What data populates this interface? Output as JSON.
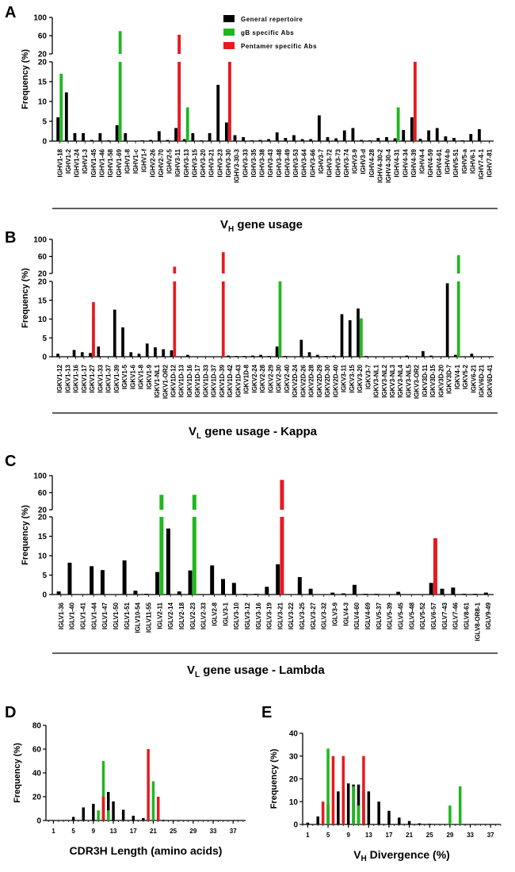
{
  "colors": {
    "general": "#000000",
    "gb": "#1fb81f",
    "pentamer": "#e8191f"
  },
  "legend": [
    {
      "key": "general",
      "label": "General repertoire"
    },
    {
      "key": "gb",
      "label": "gB specific Abs"
    },
    {
      "key": "pentamer",
      "label": "Pentamer specific Abs"
    }
  ],
  "chart_data": [
    {
      "id": "A",
      "type": "bar",
      "ylabel": "Frequency (%)",
      "title_main": "V",
      "title_sub": "H",
      "title_rest": " gene usage",
      "yticks_lower": [
        0,
        5,
        10,
        15,
        20
      ],
      "yticks_upper": [
        20,
        60,
        100
      ],
      "categories": [
        "IGHV1-18",
        "IGHV1-2",
        "IGHV1-24",
        "IGHV1-3",
        "IGHV1-45",
        "IGHV1-46",
        "IGHV1-58",
        "IGHV1-69",
        "IGHV1-8",
        "IGHV1-c",
        "IGHV1-f",
        "IGHV2-26",
        "IGHV2-70",
        "IGHV2-5",
        "IGHV3-11",
        "IGHV3-13",
        "IGHV3-15",
        "IGHV3-20",
        "IGHV3-21",
        "IGHV3-23",
        "IGHV3-30",
        "IGHV3-30-3",
        "IGHV3-33",
        "IGHV3-35",
        "IGHV3-38",
        "IGHV3-43",
        "IGHV3-48",
        "IGHV3-49",
        "IGHV3-53",
        "IGHV3-64",
        "IGHV3-66",
        "IGHV3-7",
        "IGHV3-72",
        "IGHV3-73",
        "IGHV3-74",
        "IGHV3-9",
        "IGHV3-d",
        "IGHV4-28",
        "IGHV4-30-2",
        "IGHV4-30-4",
        "IGHV4-31",
        "IGHV4-34",
        "IGHV4-39",
        "IGHV4-4",
        "IGHV4-59",
        "IGHV4-61",
        "IGHV4-b",
        "IGHV5-51",
        "IGHV5-a",
        "IGHV6-1",
        "IGHV7-4-1",
        "IGHV7-81"
      ],
      "series": [
        {
          "name": "General repertoire",
          "key": "general",
          "values": [
            6.0,
            12.3,
            2.0,
            2.0,
            0.3,
            2.0,
            0.2,
            4.0,
            2.0,
            0,
            0.2,
            0.3,
            2.5,
            0.3,
            3.3,
            0.5,
            2.0,
            0.2,
            2.0,
            14.2,
            4.7,
            1.5,
            1.0,
            0.2,
            0.3,
            0.5,
            2.2,
            0.8,
            1.5,
            0.5,
            0.5,
            6.5,
            1.0,
            0.7,
            2.7,
            3.3,
            0.3,
            0.2,
            0.8,
            1.0,
            0.7,
            2.8,
            6.0,
            0.6,
            2.7,
            3.3,
            1.2,
            0.8,
            0.2,
            1.8,
            3.0,
            0
          ]
        },
        {
          "name": "gB specific Abs",
          "key": "gb",
          "values": [
            17,
            0,
            0,
            0,
            0,
            0,
            0,
            70,
            0,
            0,
            0,
            0,
            0,
            0,
            0,
            8.5,
            0,
            0,
            0,
            0,
            0,
            0,
            0,
            0,
            0,
            0,
            0,
            0,
            0,
            0,
            0,
            0,
            0,
            0,
            0,
            0,
            0,
            0,
            0,
            0,
            8.5,
            0,
            0,
            0,
            0,
            0,
            0,
            0,
            0,
            0,
            0,
            0
          ]
        },
        {
          "name": "Pentamer specific Abs",
          "key": "pentamer",
          "values": [
            0,
            0,
            0,
            0,
            0,
            0,
            0,
            0,
            0,
            0,
            0,
            0,
            0,
            0,
            62,
            0,
            0,
            0,
            0,
            0,
            20,
            0,
            0,
            0,
            0,
            0,
            0,
            0,
            0,
            0,
            0,
            0,
            0,
            0,
            0,
            0,
            0,
            0,
            0,
            0,
            0,
            0,
            20,
            0,
            0,
            0,
            0,
            0,
            0,
            0,
            0,
            0
          ]
        }
      ]
    },
    {
      "id": "B",
      "type": "bar",
      "ylabel": "Frequency (%)",
      "title_main": "V",
      "title_sub": "L",
      "title_rest": "  gene usage - Kappa",
      "yticks_lower": [
        0,
        5,
        10,
        15,
        20
      ],
      "yticks_upper": [
        20,
        60,
        100
      ],
      "categories": [
        "IGKV1-12",
        "IGKV1-13",
        "IGKV1-16",
        "IGKV1-17",
        "IGKV1-27",
        "IGKV1-33",
        "IGKV1-37",
        "IGKV1-39",
        "IGKV1-5",
        "IGKV1-6",
        "IGKV1-8",
        "IGKV1-9",
        "IGKV1-NL1",
        "IGKV1-OR2",
        "IGKV1D-12",
        "IGKV1D-13",
        "IGKV1D-16",
        "IGKV1D-17",
        "IGKV1D-33",
        "IGKV1D-37",
        "IGKV1D-39",
        "IGKV1D-42",
        "IGKV1D-43",
        "IGKV1D-8",
        "IGKV2-24",
        "IGKV2-28",
        "IGKV2-29",
        "IGKV2-30",
        "IGKV2-40",
        "IGKV2D-24",
        "IGKV2D-26",
        "IGKV2D-28",
        "IGKV2D-29",
        "IGKV2D-30",
        "IGKV2D-40",
        "IGKV3-11",
        "IGKV3-15",
        "IGKV3-20",
        "IGKV3-7",
        "IGKV3-NL1",
        "IGKV3-NL2",
        "IGKV3-NL3",
        "IGKV3-NL4",
        "IGKV3-NL5",
        "IGKV3-OR2",
        "IGKV3D-11",
        "IGKV3D-15",
        "IGKV3D-20",
        "IGKV3D-7",
        "IGKV4-1",
        "IGKV5-2",
        "IGKV6-21",
        "IGKV6D-21",
        "IGKV6D-41"
      ],
      "series": [
        {
          "name": "General repertoire",
          "key": "general",
          "values": [
            0.8,
            0,
            1.8,
            1.2,
            1.0,
            2.7,
            0,
            12.5,
            7.8,
            1.2,
            0.8,
            3.5,
            2.5,
            2.0,
            1.7,
            0,
            0.5,
            0,
            0,
            0,
            0,
            0.3,
            0.2,
            0.2,
            0.3,
            0.5,
            0.2,
            2.7,
            0.2,
            0,
            4.5,
            1.2,
            0.5,
            0.2,
            0.3,
            11.3,
            9.7,
            12.8,
            0.2,
            0,
            0,
            0,
            0,
            0.3,
            0,
            1.5,
            0.3,
            0,
            19.5,
            0.5,
            0,
            0.8,
            0,
            0
          ]
        },
        {
          "name": "gB specific Abs",
          "key": "gb",
          "values": [
            0,
            0,
            0,
            0,
            10.2,
            0,
            0,
            0,
            0,
            0,
            0,
            0,
            0,
            0,
            0,
            0,
            0,
            0,
            0,
            0,
            0,
            0,
            0,
            0,
            0,
            0,
            0,
            20,
            0,
            0,
            0,
            0,
            0,
            0,
            0,
            0,
            0,
            10.2,
            0,
            0,
            0,
            0,
            0,
            0,
            0,
            0,
            0,
            0,
            0,
            63,
            0,
            0,
            0,
            0
          ]
        },
        {
          "name": "Pentamer specific Abs",
          "key": "pentamer",
          "values": [
            0,
            0,
            0,
            0,
            14.5,
            0,
            0,
            0,
            0,
            0,
            0,
            0,
            0,
            0,
            36,
            0,
            0,
            0,
            0,
            0,
            70,
            0,
            0,
            0,
            0,
            0,
            0,
            0,
            0,
            0,
            0,
            0,
            0,
            0,
            0,
            0,
            0,
            0,
            0,
            0,
            0,
            0,
            0,
            0,
            0,
            0,
            0,
            0,
            0,
            0,
            0,
            0,
            0,
            0
          ]
        }
      ]
    },
    {
      "id": "C",
      "type": "bar",
      "ylabel": "Frequency (%)",
      "title_main": "V",
      "title_sub": "L",
      "title_rest": "  gene usage - Lambda",
      "yticks_lower": [
        0,
        5,
        10,
        15,
        20
      ],
      "yticks_upper": [
        20,
        60,
        100
      ],
      "categories": [
        "IGLV1-36",
        "IGLV1-40",
        "IGLV1-41",
        "IGLV1-44",
        "IGLV1-47",
        "IGLV1-50",
        "IGLV1-51",
        "IGLV10-54",
        "IGLV11-55",
        "IGLV2-11",
        "IGLV2-14",
        "IGLV2-18",
        "IGLV2-23",
        "IGLV2-33",
        "IGLV2-8",
        "IGLV3-1",
        "IGLV3-10",
        "IGLV3-12",
        "IGLV3-16",
        "IGLV3-19",
        "IGLV3-21",
        "IGLV3-22",
        "IGLV3-25",
        "IGLV3-27",
        "IGLV3-32",
        "IGLV3-9",
        "IGLV4-3",
        "IGLV4-60",
        "IGLV4-69",
        "IGLV5-37",
        "IGLV5-39",
        "IGLV5-45",
        "IGLV5-48",
        "IGLV5-52",
        "IGLV6-57",
        "IGLV7-43",
        "IGLV7-46",
        "IGLV8-61",
        "IGLV8-OR8-1",
        "IGLV9-49"
      ],
      "series": [
        {
          "name": "General repertoire",
          "key": "general",
          "values": [
            0.8,
            8.2,
            0,
            7.3,
            6.3,
            0,
            8.8,
            1.0,
            0.2,
            5.8,
            17.0,
            0.8,
            6.2,
            0,
            7.5,
            4.0,
            3.0,
            0.2,
            0.2,
            2.0,
            7.8,
            0,
            4.5,
            1.5,
            0,
            0.5,
            0.3,
            2.5,
            0.2,
            0.2,
            0,
            0.7,
            0,
            0,
            3.0,
            1.5,
            1.8,
            0.2,
            0.2,
            0.5
          ]
        },
        {
          "name": "gB specific Abs",
          "key": "gb",
          "values": [
            0,
            0,
            0,
            0,
            0,
            0,
            0,
            0,
            0,
            55,
            0,
            0,
            55,
            0,
            0,
            0,
            0,
            0,
            0,
            0,
            0,
            0,
            0,
            0,
            0,
            0,
            0,
            0,
            0,
            0,
            0,
            0,
            0,
            0,
            0,
            0,
            0,
            0,
            0,
            0
          ]
        },
        {
          "name": "Pentamer specific Abs",
          "key": "pentamer",
          "values": [
            0,
            0,
            0,
            0,
            0,
            0,
            0,
            0,
            0,
            0,
            0,
            0,
            0,
            0,
            0,
            0,
            0,
            0,
            0,
            0,
            90,
            0,
            0,
            0,
            0,
            0,
            0,
            0,
            0,
            0,
            0,
            0,
            0,
            0,
            14.5,
            0,
            0,
            0,
            0,
            0
          ]
        }
      ]
    },
    {
      "id": "D",
      "type": "bar",
      "ylabel": "Frequency (%)",
      "xlabel": "CDR3H Length (amino acids)",
      "ylim": [
        0,
        80
      ],
      "yticks": [
        0,
        20,
        40,
        60,
        80
      ],
      "xlim": [
        -0.5,
        39.5
      ],
      "xticks": [
        1,
        5,
        9,
        13,
        17,
        21,
        25,
        29,
        33,
        37
      ],
      "x": [
        5,
        7,
        9,
        11,
        13,
        15,
        17,
        19,
        21,
        23,
        25
      ],
      "series": [
        {
          "name": "General repertoire",
          "key": "general",
          "x": [
            5,
            7,
            9,
            11,
            12,
            13,
            15,
            17,
            19,
            21,
            23,
            25
          ],
          "values": [
            3,
            11,
            14,
            16,
            24,
            16,
            9,
            4,
            2,
            1,
            0.5,
            0.2
          ]
        },
        {
          "name": "gB specific Abs",
          "key": "gb",
          "x": [
            10,
            11,
            12,
            21
          ],
          "values": [
            8.5,
            50,
            8.5,
            33
          ]
        },
        {
          "name": "Pentamer specific Abs",
          "key": "pentamer",
          "x": [
            11,
            20,
            22
          ],
          "values": [
            20,
            60,
            20
          ]
        }
      ]
    },
    {
      "id": "E",
      "type": "bar",
      "ylabel": "Frequency (%)",
      "xlabel_main": "V",
      "xlabel_sub": "H",
      "xlabel_rest": " Divergence (%)",
      "ylim": [
        0,
        40
      ],
      "yticks": [
        0,
        10,
        20,
        30,
        40
      ],
      "xlim": [
        0,
        39
      ],
      "xticks": [
        1,
        5,
        9,
        13,
        17,
        21,
        25,
        29,
        33,
        37
      ],
      "series": [
        {
          "name": "General repertoire",
          "key": "general",
          "x": [
            1,
            3,
            5,
            7,
            8,
            9,
            10,
            11,
            12,
            13,
            15,
            17,
            19,
            21,
            23,
            25
          ],
          "values": [
            0.8,
            3.5,
            8.8,
            14.5,
            15.5,
            18,
            17.5,
            17.5,
            15,
            14.5,
            10,
            6,
            3,
            1.5,
            0.5,
            0.3
          ]
        },
        {
          "name": "gB specific Abs",
          "key": "gb",
          "x": [
            5,
            8,
            10,
            11,
            29,
            31
          ],
          "values": [
            33.3,
            16.7,
            16.7,
            8.3,
            8.3,
            16.7
          ]
        },
        {
          "name": "Pentamer specific Abs",
          "key": "pentamer",
          "x": [
            4,
            6,
            8,
            12
          ],
          "values": [
            10,
            30,
            30,
            30
          ]
        }
      ]
    }
  ]
}
